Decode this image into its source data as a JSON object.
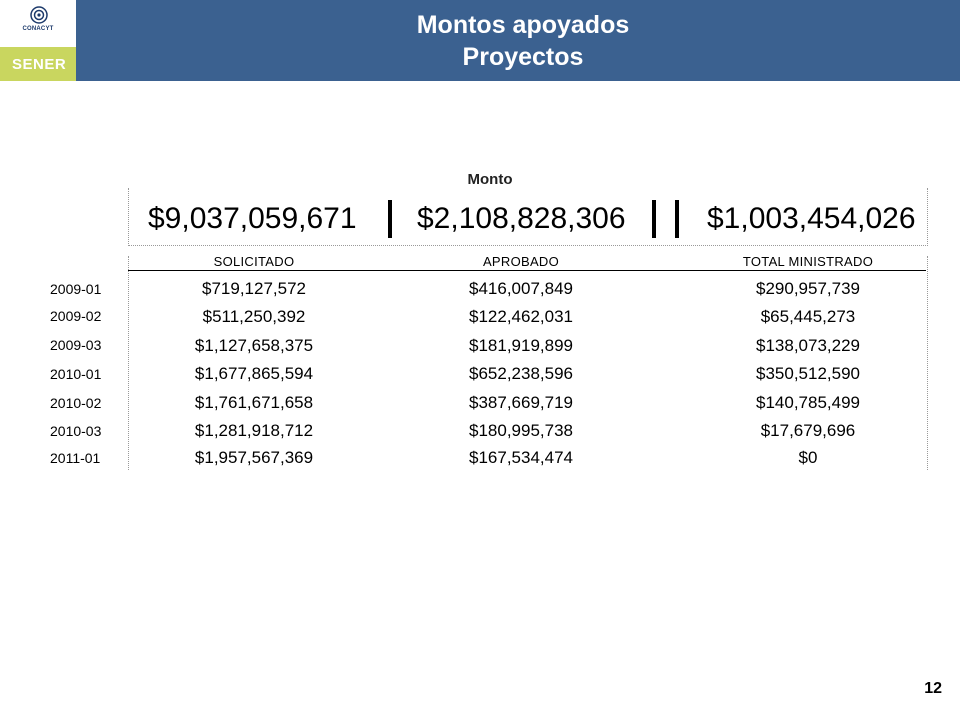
{
  "header": {
    "logo_conacyt": "CONACYT",
    "logo_sener": "SENER",
    "title_line1": "Montos apoyados",
    "title_line2": "Proyectos"
  },
  "summary": {
    "label": "Monto",
    "solicitado_total": "$9,037,059,671",
    "aprobado_total": "$2,108,828,306",
    "ministrado_total": "$1,003,454,026"
  },
  "table": {
    "columns": [
      "SOLICITADO",
      "APROBADO",
      "TOTAL MINISTRADO"
    ],
    "rows": [
      {
        "period": "2009-01",
        "solicitado": "$719,127,572",
        "aprobado": "$416,007,849",
        "ministrado": "$290,957,739"
      },
      {
        "period": "2009-02",
        "solicitado": "$511,250,392",
        "aprobado": "$122,462,031",
        "ministrado": "$65,445,273"
      },
      {
        "period": "2009-03",
        "solicitado": "$1,127,658,375",
        "aprobado": "$181,919,899",
        "ministrado": "$138,073,229"
      },
      {
        "period": "2010-01",
        "solicitado": "$1,677,865,594",
        "aprobado": "$652,238,596",
        "ministrado": "$350,512,590"
      },
      {
        "period": "2010-02",
        "solicitado": "$1,761,671,658",
        "aprobado": "$387,669,719",
        "ministrado": "$140,785,499"
      },
      {
        "period": "2010-03",
        "solicitado": "$1,281,918,712",
        "aprobado": "$180,995,738",
        "ministrado": "$17,679,696"
      },
      {
        "period": "2011-01",
        "solicitado": "$1,957,567,369",
        "aprobado": "$167,534,474",
        "ministrado": "$0"
      }
    ]
  },
  "footer": {
    "page_number": "12"
  },
  "colors": {
    "header_blue": "#3b6190",
    "sener_green": "#c9d65f",
    "conacyt_navy": "#1d3a6b"
  }
}
